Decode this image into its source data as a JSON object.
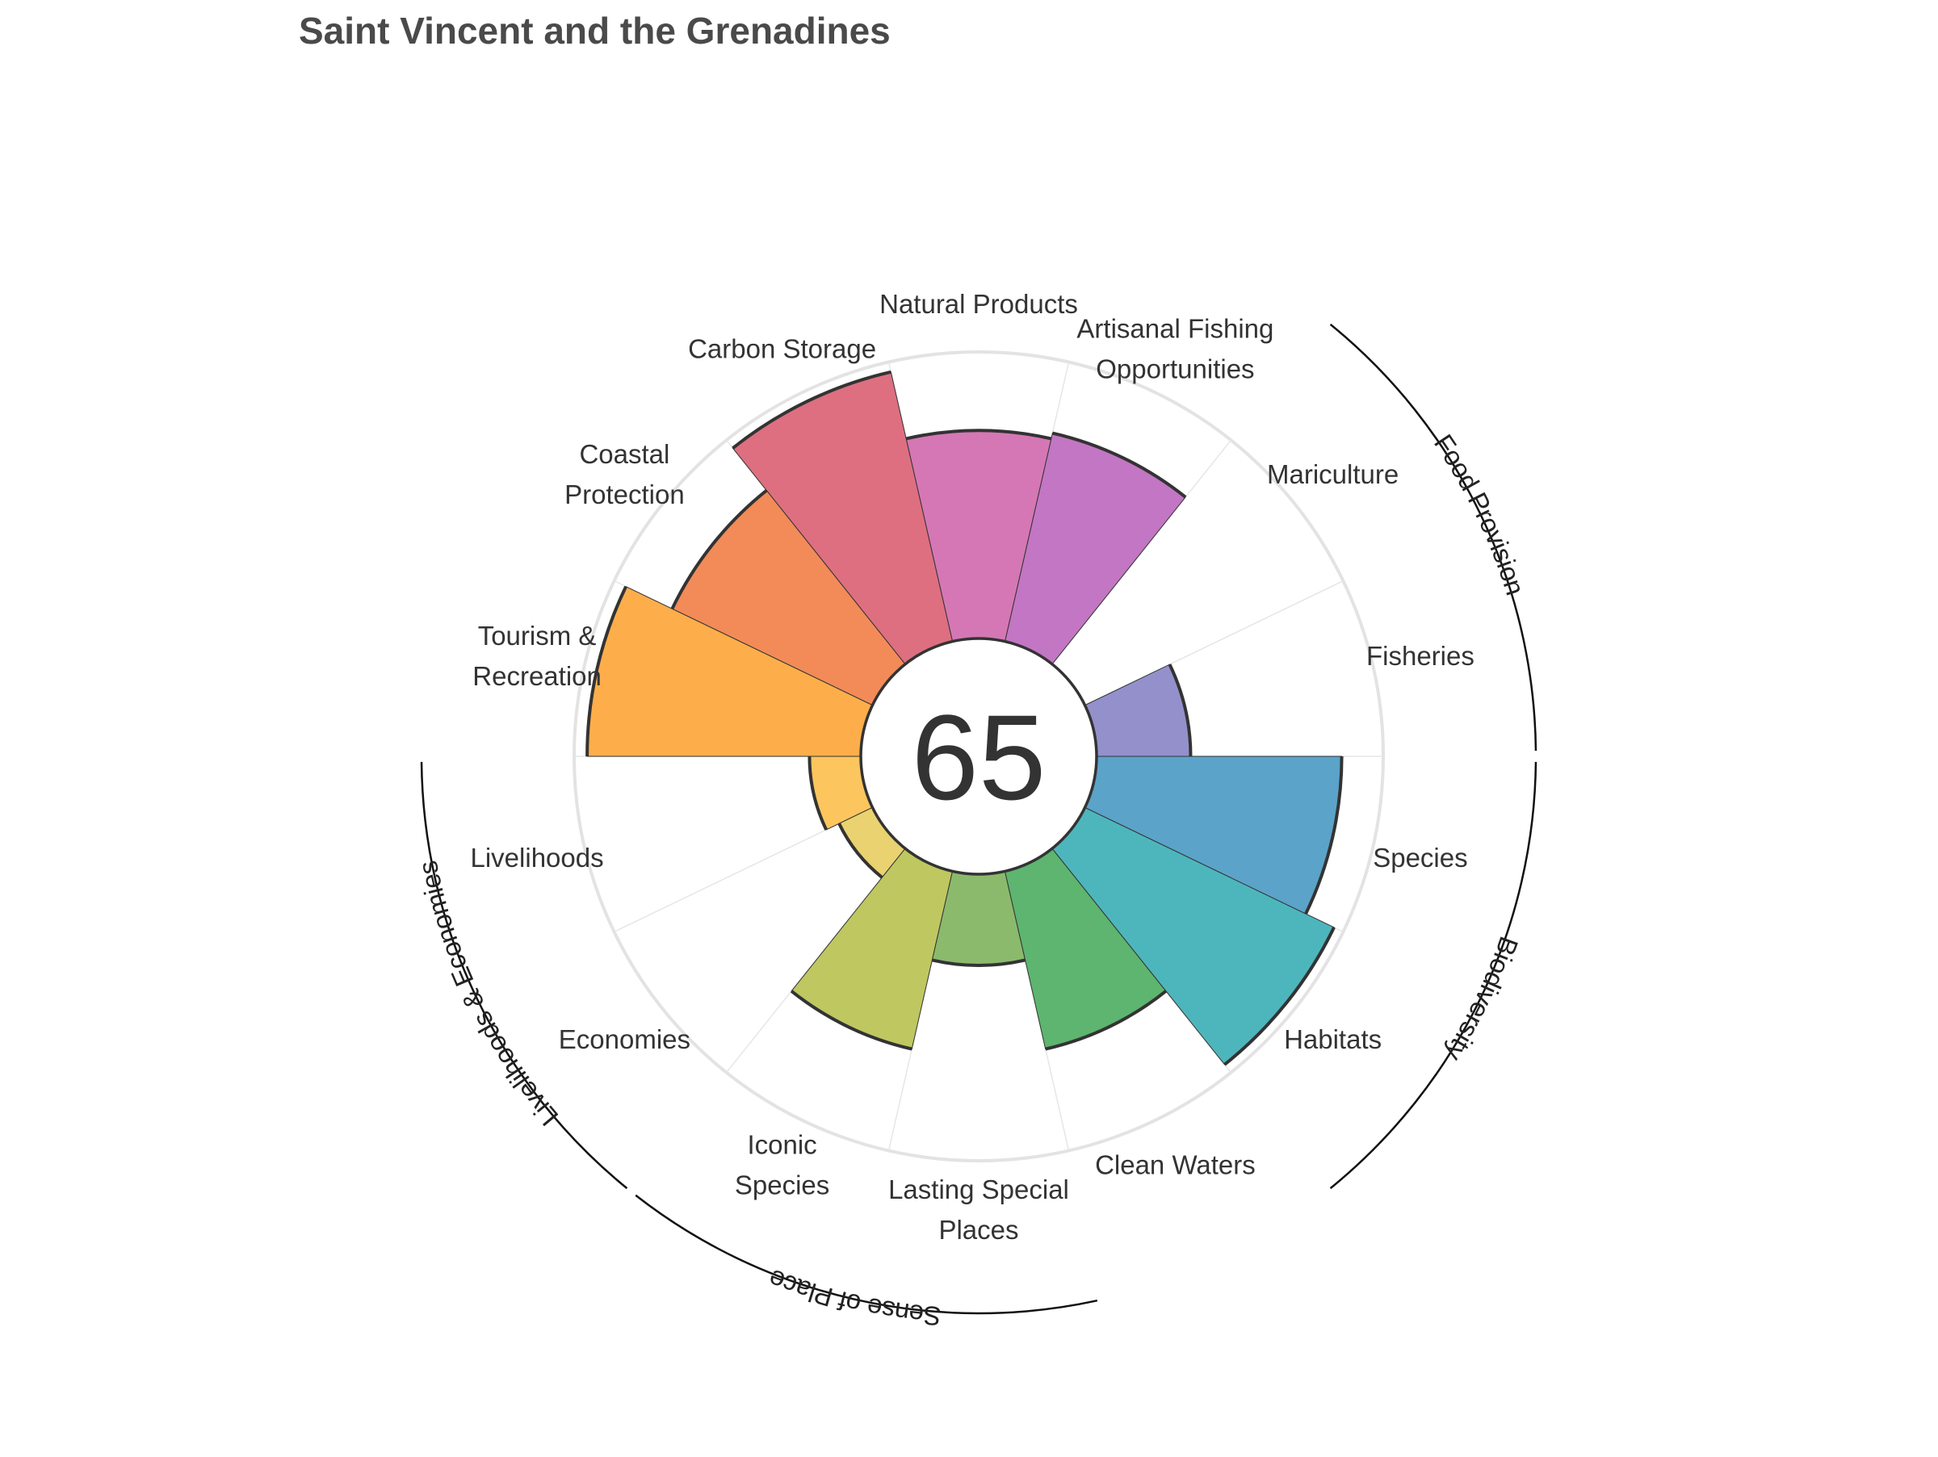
{
  "chart_data": {
    "type": "flower",
    "title": "Saint Vincent and the Grenadines",
    "center_score": "65",
    "axis_max": 100,
    "petals": [
      {
        "name": "Fisheries",
        "value": 33,
        "color": "#9490cc"
      },
      {
        "name": "Mariculture",
        "value": 0,
        "color": "#b57bc8"
      },
      {
        "name": "Artisanal Fishing Opportunities",
        "value": 75,
        "color": "#c376c3"
      },
      {
        "name": "Natural Products",
        "value": 73,
        "color": "#d577b5"
      },
      {
        "name": "Carbon Storage",
        "value": 97,
        "color": "#dd6f80"
      },
      {
        "name": "Coastal Protection",
        "value": 78,
        "color": "#f28b58"
      },
      {
        "name": "Tourism & Recreation",
        "value": 96,
        "color": "#fdae4b"
      },
      {
        "name": "Livelihoods",
        "value": 18,
        "color": "#fdc55e"
      },
      {
        "name": "Economies",
        "value": 13,
        "color": "#ead270"
      },
      {
        "name": "Iconic Species",
        "value": 64,
        "color": "#bfc761"
      },
      {
        "name": "Lasting Special Places",
        "value": 32,
        "color": "#8bba6c"
      },
      {
        "name": "Clean Waters",
        "value": 64,
        "color": "#5db56f"
      },
      {
        "name": "Habitats",
        "value": 97,
        "color": "#4db6bc"
      },
      {
        "name": "Species",
        "value": 86,
        "color": "#5ba3c9"
      }
    ],
    "petal_labels": [
      [
        "Fisheries"
      ],
      [
        "Mariculture"
      ],
      [
        "Artisanal Fishing",
        "Opportunities"
      ],
      [
        "Natural Products"
      ],
      [
        "Carbon Storage"
      ],
      [
        "Coastal",
        "Protection"
      ],
      [
        "Tourism &",
        "Recreation"
      ],
      [
        "Livelihoods"
      ],
      [
        "Economies"
      ],
      [
        "Iconic",
        "Species"
      ],
      [
        "Lasting Special",
        "Places"
      ],
      [
        "Clean Waters"
      ],
      [
        "Habitats"
      ],
      [
        "Species"
      ]
    ],
    "goal_groups": [
      {
        "name": "Food Provision",
        "petals": [
          "Fisheries",
          "Mariculture"
        ]
      },
      {
        "name": "Biodiversity",
        "petals": [
          "Habitats",
          "Species"
        ]
      },
      {
        "name": "Sense of Place",
        "petals": [
          "Iconic Species",
          "Lasting Special Places"
        ]
      },
      {
        "name": "Livelihoods & Economies",
        "petals": [
          "Livelihoods",
          "Economies"
        ]
      }
    ],
    "grid": true
  }
}
